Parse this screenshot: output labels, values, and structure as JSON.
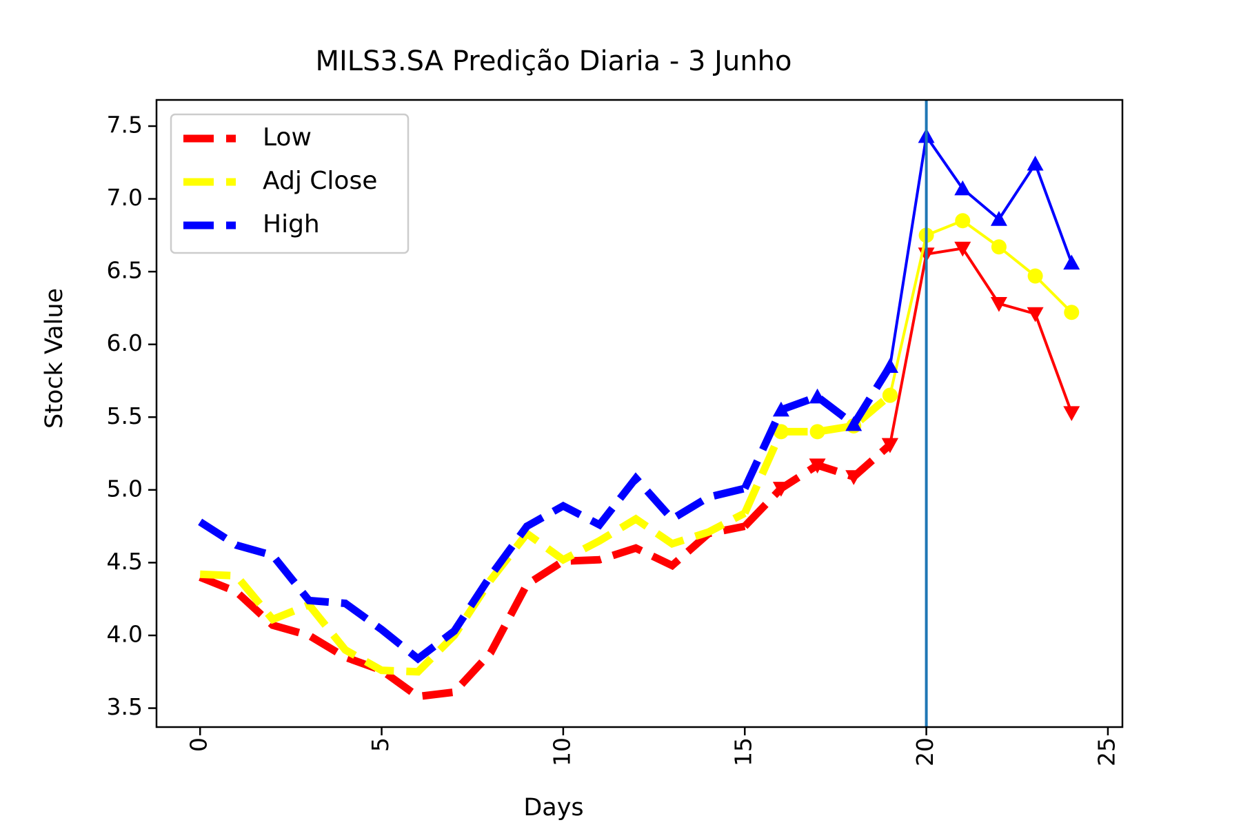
{
  "chart_data": {
    "type": "line",
    "title": "MILS3.SA Predição Diaria - 3 Junho",
    "xlabel": "Days",
    "ylabel": "Stock Value",
    "xlim": [
      -1.2,
      25.4
    ],
    "ylim": [
      3.37,
      7.68
    ],
    "x_ticks": [
      0,
      5,
      10,
      15,
      20,
      25
    ],
    "y_ticks": [
      3.5,
      4.0,
      4.5,
      5.0,
      5.5,
      6.0,
      6.5,
      7.0,
      7.5
    ],
    "x_tick_labels": [
      "0",
      "5",
      "10",
      "15",
      "20",
      "25"
    ],
    "y_tick_labels": [
      "3.5",
      "4.0",
      "4.5",
      "5.0",
      "5.5",
      "6.0",
      "6.5",
      "7.0",
      "7.5"
    ],
    "grid": false,
    "legend_position": "top-left",
    "vertical_line": {
      "x": 20,
      "color": "#1f77b4"
    },
    "series": [
      {
        "name": "Low",
        "color": "#ff0000",
        "marker": "triangle-down",
        "history_x": [
          0,
          1,
          2,
          3,
          4,
          5,
          6,
          7,
          8,
          9,
          10,
          11,
          12,
          13,
          14,
          15
        ],
        "history_y": [
          4.4,
          4.3,
          4.07,
          4.0,
          3.85,
          3.76,
          3.58,
          3.61,
          3.88,
          4.35,
          4.51,
          4.52,
          4.6,
          4.48,
          4.7,
          4.75
        ],
        "mid_x": [
          15,
          16,
          17,
          18,
          19
        ],
        "mid_y": [
          4.75,
          5.01,
          5.17,
          5.09,
          5.31
        ],
        "forecast_x": [
          19,
          20,
          21,
          22,
          23,
          24
        ],
        "forecast_y": [
          5.31,
          6.62,
          6.66,
          6.28,
          6.21,
          5.53
        ]
      },
      {
        "name": "Adj Close",
        "color": "#ffff00",
        "marker": "circle",
        "history_x": [
          0,
          1,
          2,
          3,
          4,
          5,
          6,
          7,
          8,
          9,
          10,
          11,
          12,
          13,
          14,
          15
        ],
        "history_y": [
          4.42,
          4.41,
          4.11,
          4.21,
          3.9,
          3.76,
          3.75,
          4.0,
          4.38,
          4.7,
          4.52,
          4.65,
          4.8,
          4.63,
          4.71,
          4.84
        ],
        "mid_x": [
          15,
          16,
          17,
          18,
          19
        ],
        "mid_y": [
          4.84,
          5.4,
          5.4,
          5.44,
          5.65
        ],
        "forecast_x": [
          19,
          20,
          21,
          22,
          23,
          24
        ],
        "forecast_y": [
          5.65,
          6.75,
          6.85,
          6.67,
          6.47,
          6.22
        ]
      },
      {
        "name": "High",
        "color": "#0000ff",
        "marker": "triangle-up",
        "history_x": [
          0,
          1,
          2,
          3,
          4,
          5,
          6,
          7,
          8,
          9,
          10,
          11,
          12,
          13,
          14,
          15
        ],
        "history_y": [
          4.78,
          4.62,
          4.55,
          4.24,
          4.22,
          4.04,
          3.84,
          4.03,
          4.41,
          4.75,
          4.89,
          4.76,
          5.08,
          4.8,
          4.95,
          5.01
        ],
        "mid_x": [
          15,
          16,
          17,
          18,
          19
        ],
        "mid_y": [
          5.01,
          5.55,
          5.64,
          5.45,
          5.85
        ],
        "forecast_x": [
          19,
          20,
          21,
          22,
          23,
          24
        ],
        "forecast_y": [
          5.85,
          7.43,
          7.07,
          6.86,
          7.24,
          6.56
        ]
      }
    ]
  }
}
